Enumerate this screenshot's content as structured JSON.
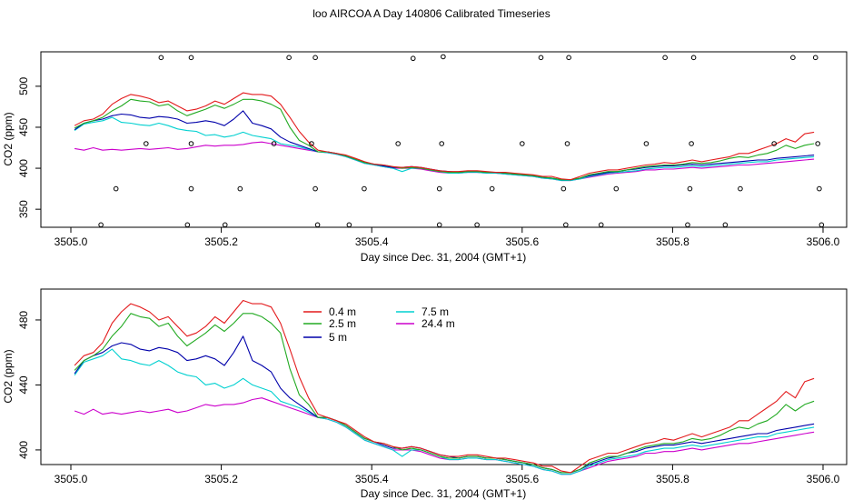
{
  "title": "loo AIRCOA A  Day 140806  Calibrated Timeseries",
  "chart_data": [
    {
      "type": "line",
      "xlabel": "Day since Dec. 31, 2004 (GMT+1)",
      "ylabel": "CO2 (ppm)",
      "xlim": [
        3505.0,
        3506.0
      ],
      "ylim": [
        328,
        542
      ],
      "xticks": [
        "3505.0",
        "3505.2",
        "3505.4",
        "3505.6",
        "3505.8",
        "3506.0"
      ],
      "yticks": [
        "350",
        "400",
        "450",
        "500"
      ],
      "flag_points": {
        "x": [
          3505.04,
          3505.06,
          3505.1,
          3505.12,
          3505.155,
          3505.16,
          3505.16,
          3505.16,
          3505.205,
          3505.225,
          3505.27,
          3505.29,
          3505.32,
          3505.325,
          3505.325,
          3505.328,
          3505.37,
          3505.39,
          3505.435,
          3505.455,
          3505.49,
          3505.49,
          3505.493,
          3505.495,
          3505.54,
          3505.56,
          3505.6,
          3505.625,
          3505.655,
          3505.658,
          3505.66,
          3505.662,
          3505.705,
          3505.725,
          3505.765,
          3505.79,
          3505.82,
          3505.823,
          3505.825,
          3505.828,
          3505.87,
          3505.89,
          3505.935,
          3505.96,
          3505.99,
          3505.993,
          3505.995,
          3505.998
        ],
        "y": [
          331,
          375,
          430,
          535,
          331,
          375,
          430,
          535,
          331,
          375,
          430,
          535,
          430,
          535,
          375,
          331,
          331,
          375,
          430,
          534,
          331,
          375,
          430,
          536,
          331,
          375,
          430,
          535,
          375,
          331,
          430,
          535,
          331,
          375,
          430,
          535,
          331,
          375,
          430,
          535,
          331,
          375,
          430,
          535,
          535,
          430,
          375,
          331
        ]
      },
      "series": [
        {
          "name": "0.4 m",
          "color": "#e31a1c",
          "values": [
            452,
            458,
            460,
            466,
            478,
            485,
            490,
            488,
            485,
            480,
            482,
            476,
            470,
            472,
            476,
            482,
            478,
            485,
            492,
            490,
            490,
            488,
            478,
            462,
            445,
            432,
            422,
            420,
            418,
            416,
            412,
            408,
            405,
            404,
            402,
            401,
            402,
            401,
            399,
            397,
            396,
            396,
            397,
            397,
            396,
            395,
            395,
            394,
            393,
            392,
            390,
            390,
            387,
            386,
            390,
            394,
            396,
            398,
            398,
            400,
            402,
            404,
            405,
            407,
            406,
            408,
            410,
            408,
            410,
            412,
            414,
            418,
            418,
            422,
            426,
            430,
            436,
            432,
            442,
            444
          ]
        },
        {
          "name": "2.5 m",
          "color": "#22aa22",
          "values": [
            449,
            455,
            458,
            462,
            470,
            476,
            484,
            482,
            481,
            476,
            478,
            470,
            464,
            468,
            472,
            477,
            473,
            478,
            484,
            484,
            482,
            478,
            472,
            450,
            434,
            428,
            420,
            420,
            418,
            415,
            411,
            407,
            405,
            404,
            402,
            400,
            401,
            400,
            398,
            396,
            395,
            395,
            396,
            396,
            395,
            395,
            394,
            393,
            392,
            391,
            389,
            388,
            386,
            386,
            388,
            392,
            394,
            396,
            396,
            398,
            400,
            402,
            403,
            404,
            404,
            405,
            407,
            406,
            407,
            409,
            412,
            414,
            413,
            416,
            418,
            422,
            428,
            424,
            428,
            430
          ]
        },
        {
          "name": "5 m",
          "color": "#0000aa",
          "values": [
            447,
            455,
            458,
            460,
            464,
            466,
            465,
            462,
            461,
            463,
            462,
            460,
            455,
            456,
            458,
            456,
            452,
            460,
            470,
            455,
            452,
            448,
            438,
            432,
            428,
            424,
            420,
            420,
            418,
            415,
            411,
            407,
            405,
            403,
            401,
            401,
            402,
            401,
            399,
            397,
            396,
            395,
            396,
            396,
            395,
            395,
            394,
            393,
            392,
            391,
            389,
            388,
            386,
            386,
            388,
            391,
            393,
            395,
            396,
            398,
            399,
            401,
            402,
            403,
            403,
            404,
            405,
            404,
            405,
            406,
            407,
            408,
            409,
            410,
            410,
            412,
            413,
            414,
            415,
            416
          ]
        },
        {
          "name": "7.5 m",
          "color": "#00d0d0",
          "values": [
            446,
            454,
            456,
            458,
            462,
            456,
            455,
            453,
            452,
            455,
            452,
            448,
            446,
            445,
            440,
            441,
            438,
            440,
            444,
            440,
            438,
            436,
            430,
            428,
            426,
            423,
            420,
            419,
            417,
            414,
            410,
            406,
            404,
            402,
            400,
            396,
            400,
            400,
            398,
            396,
            394,
            394,
            395,
            395,
            394,
            394,
            393,
            392,
            391,
            390,
            388,
            387,
            385,
            385,
            387,
            390,
            392,
            394,
            395,
            396,
            397,
            399,
            400,
            401,
            401,
            402,
            403,
            402,
            403,
            404,
            405,
            406,
            407,
            408,
            408,
            410,
            411,
            412,
            413,
            414
          ]
        },
        {
          "name": "24.4 m",
          "color": "#cc00cc",
          "values": [
            424,
            422,
            425,
            422,
            423,
            422,
            423,
            424,
            423,
            424,
            425,
            423,
            424,
            426,
            428,
            427,
            428,
            428,
            429,
            431,
            432,
            430,
            428,
            426,
            424,
            422,
            420,
            419,
            417,
            414,
            410,
            406,
            404,
            402,
            400,
            400,
            400,
            399,
            397,
            395,
            394,
            394,
            395,
            395,
            394,
            394,
            393,
            392,
            391,
            390,
            388,
            387,
            385,
            385,
            387,
            389,
            391,
            393,
            394,
            395,
            396,
            398,
            398,
            399,
            399,
            400,
            401,
            400,
            401,
            402,
            403,
            404,
            404,
            405,
            406,
            407,
            408,
            409,
            410,
            411
          ]
        }
      ]
    },
    {
      "type": "line",
      "xlabel": "Day since Dec. 31, 2004 (GMT+1)",
      "ylabel": "CO2 (ppm)",
      "xlim": [
        3505.0,
        3506.0
      ],
      "ylim": [
        391,
        499
      ],
      "xticks": [
        "3505.0",
        "3505.2",
        "3505.4",
        "3505.6",
        "3505.8",
        "3506.0"
      ],
      "yticks": [
        "400",
        "440",
        "480"
      ],
      "legend": [
        "0.4 m",
        "2.5 m",
        "5 m",
        "7.5 m",
        "24.4 m"
      ],
      "legend_position": "top-center"
    }
  ]
}
